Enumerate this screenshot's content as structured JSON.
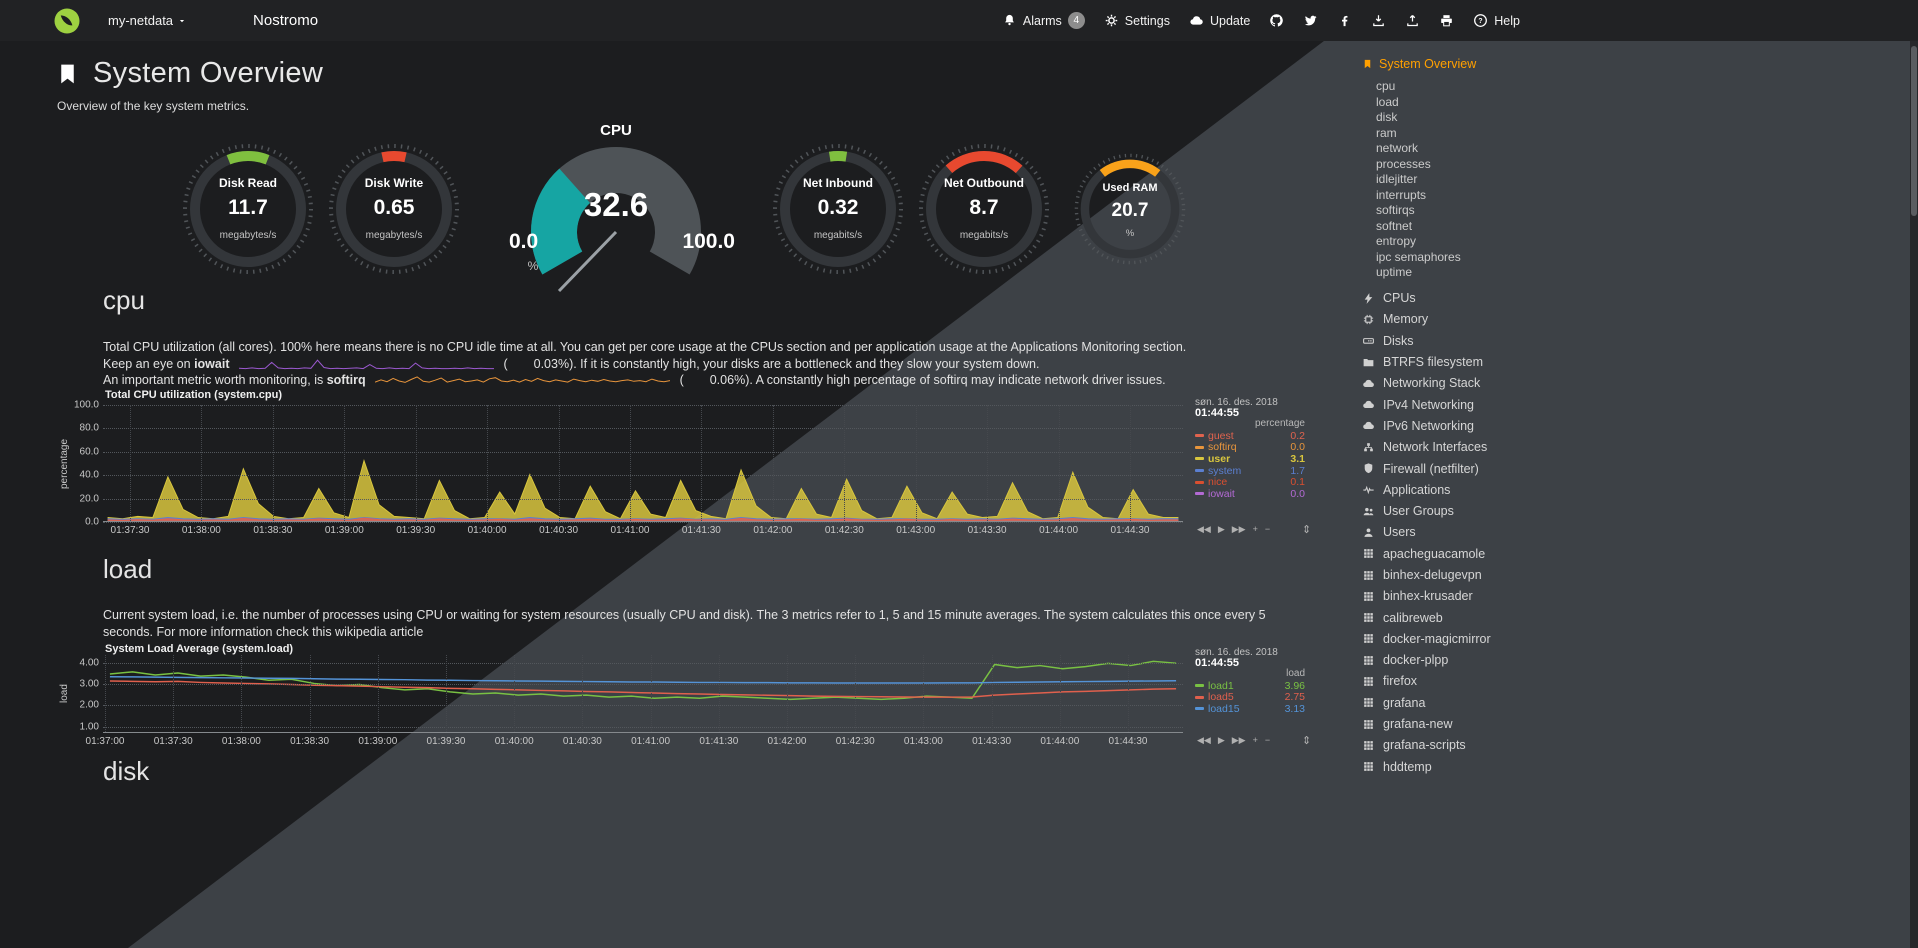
{
  "colors": {
    "accent_orange": "#ffa000",
    "bg_dark": "#1c1d1f",
    "bg_light": "#3d4146",
    "topbar_bg": "#212224"
  },
  "icons": {
    "alarms": "bell",
    "settings": "gear",
    "update": "cloud",
    "help": "question-circle",
    "active_section": "bookmark",
    "social": [
      "github",
      "twitter",
      "facebook"
    ],
    "actions": [
      "download",
      "upload",
      "print"
    ]
  },
  "topbar": {
    "hostname": "my-netdata",
    "app_title": "Nostromo",
    "alarms_label": "Alarms",
    "alarms_count": "4",
    "settings_label": "Settings",
    "update_label": "Update",
    "help_label": "Help"
  },
  "page": {
    "title": "System Overview",
    "subtitle": "Overview of the key system metrics."
  },
  "gauges": {
    "small": [
      {
        "label": "Disk Read",
        "value": "11.7",
        "unit": "megabytes/s",
        "color": "#7fbf3f",
        "arc_pct": 12
      },
      {
        "label": "Disk Write",
        "value": "0.65",
        "unit": "megabytes/s",
        "color": "#e8492f",
        "arc_pct": 7
      },
      {
        "label": "Net Inbound",
        "value": "0.32",
        "unit": "megabits/s",
        "color": "#7fbf3f",
        "arc_pct": 5
      },
      {
        "label": "Net Outbound",
        "value": "8.7",
        "unit": "megabits/s",
        "color": "#e8492f",
        "arc_pct": 23
      },
      {
        "label": "Used RAM",
        "value": "20.7",
        "unit": "%",
        "color": "#f9a21a",
        "arc_pct": 21,
        "small": true
      }
    ],
    "cpu": {
      "title": "CPU",
      "value": "32.6",
      "min": "0.0",
      "max": "100.0",
      "unit": "%",
      "pct": 32.6,
      "fill_color": "#16a5a3",
      "body_color": "#4e5357",
      "needle_color": "#9ba1a6"
    }
  },
  "cpu_section": {
    "heading": "cpu",
    "intro": "Total CPU utilization (all cores). 100% here means there is no CPU idle time at all. You can get per core usage at the CPUs section and per application usage at the Applications Monitoring section.",
    "iowait_pre": "Keep an eye on",
    "iowait_term": "iowait",
    "iowait_open": "(",
    "iowait_value": "0.03%",
    "iowait_post": "). If it is constantly high, your disks are a bottleneck and they slow your system down.",
    "softirq_pre": "An important metric worth monitoring, is",
    "softirq_term": "softirq",
    "softirq_open": "(",
    "softirq_value": "0.06%",
    "softirq_post": "). A constantly high percentage of softirq may indicate network driver issues."
  },
  "load_section": {
    "heading": "load",
    "intro": "Current system load, i.e. the number of processes using CPU or waiting for system resources (usually CPU and disk). The 3 metrics refer to 1, 5 and 15 minute averages. The system calculates this once every 5 seconds. For more information check this wikipedia article"
  },
  "disk_section": {
    "heading": "disk"
  },
  "ui": {
    "toolbar": [
      "◀◀",
      "▶",
      "▶▶",
      "+",
      "−"
    ],
    "resize_icon": "⇕"
  },
  "sparklines": [
    {
      "id": "iowait",
      "color": "#9b59d0",
      "ymax": 3,
      "values": [
        0.2,
        0.1,
        0.3,
        0.1,
        0.2,
        1.8,
        0.3,
        0.1,
        0.2,
        0.1,
        0.3,
        0.2,
        2.4,
        0.4,
        0.1,
        0.2,
        0.1,
        0.2,
        0.3,
        0.1,
        1.2,
        0.2,
        0.1,
        0.3,
        0.1,
        0.2,
        0.1,
        1.6,
        0.3,
        0.1,
        0.2,
        0.1,
        0.1,
        0.2,
        0.1,
        0.3,
        0.1,
        0.2,
        0.1,
        0.1
      ]
    },
    {
      "id": "softirq",
      "color": "#e8953c",
      "ymax": 3,
      "values": [
        0.8,
        1.4,
        0.9,
        1.8,
        1.1,
        0.7,
        1.5,
        2.2,
        1.0,
        0.8,
        1.3,
        1.9,
        0.8,
        1.2,
        1.6,
        0.9,
        1.1,
        1.4,
        0.8,
        1.7,
        2.0,
        1.1,
        0.9,
        1.3,
        0.8,
        1.5,
        1.0,
        1.8,
        1.2,
        0.9,
        1.4,
        1.1,
        0.8,
        1.6,
        1.2,
        0.9,
        1.3,
        1.0,
        1.5,
        1.1,
        0.9,
        1.2,
        1.4,
        1.0,
        1.2,
        0.9,
        1.6,
        1.1,
        0.9,
        1.2
      ]
    }
  ],
  "chart_data": [
    {
      "id": "cpu",
      "type": "area",
      "title": "Total CPU utilization (system.cpu)",
      "ylabel": "percentage",
      "unit": "percentage",
      "ylim": [
        0,
        100
      ],
      "yticks": [
        "100.0",
        "80.0",
        "60.0",
        "40.0",
        "20.0",
        "0.0"
      ],
      "xticks": [
        "01:37:30",
        "01:38:00",
        "01:38:30",
        "01:39:00",
        "01:39:30",
        "01:40:00",
        "01:40:30",
        "01:41:00",
        "01:41:30",
        "01:42:00",
        "01:42:30",
        "01:43:00",
        "01:43:30",
        "01:44:00",
        "01:44:30"
      ],
      "timestamp_date": "søn. 16. des. 2018",
      "timestamp_time": "01:44:55",
      "legend": [
        {
          "name": "guest",
          "value": "0.2",
          "color": "#e0634e"
        },
        {
          "name": "softirq",
          "value": "0.0",
          "color": "#e8953c"
        },
        {
          "name": "user",
          "value": "3.1",
          "color": "#d8c63e",
          "bold": true
        },
        {
          "name": "system",
          "value": "1.7",
          "color": "#5b7fd0"
        },
        {
          "name": "nice",
          "value": "0.1",
          "color": "#d94f30"
        },
        {
          "name": "iowait",
          "value": "0.0",
          "color": "#b36ad4"
        }
      ],
      "series": [
        {
          "name": "user",
          "color": "#d8c63e",
          "fill": true,
          "values": [
            3,
            2,
            4,
            3,
            38,
            10,
            3,
            2,
            4,
            45,
            15,
            4,
            2,
            3,
            28,
            7,
            3,
            52,
            14,
            4,
            3,
            2,
            35,
            9,
            2,
            3,
            25,
            6,
            40,
            11,
            3,
            2,
            30,
            8,
            2,
            26,
            6,
            3,
            35,
            9,
            4,
            2,
            44,
            13,
            3,
            2,
            28,
            6,
            3,
            36,
            9,
            2,
            3,
            30,
            7,
            2,
            25,
            6,
            3,
            4,
            33,
            8,
            2,
            3,
            42,
            12,
            3,
            2,
            27,
            6,
            3,
            3
          ]
        },
        {
          "name": "system",
          "color": "#5b7fd0",
          "fill": true,
          "values": [
            2,
            1.5,
            2,
            1.5,
            3,
            2,
            1.5,
            2,
            1.5,
            3,
            2,
            1.5,
            2,
            1.5,
            2.5,
            2,
            1.5,
            3,
            2,
            1.5,
            2,
            1.5,
            2.5,
            2,
            1.5,
            2,
            2,
            1.5,
            3,
            2,
            1.5,
            2,
            2.5,
            1.5,
            1.5,
            2,
            1.5,
            2,
            2.5,
            1.5,
            2,
            1.5,
            3,
            2,
            1.5,
            2,
            2,
            1.5,
            2,
            2.5,
            1.5,
            1.5,
            2,
            2,
            1.5,
            1.5,
            2,
            1.5,
            2,
            1.5,
            2.5,
            2,
            1.5,
            2,
            3,
            2,
            1.5,
            2,
            2,
            1.5,
            2,
            2
          ]
        },
        {
          "name": "guest",
          "color": "#e0634e",
          "fill": true,
          "values": [
            1,
            0.6,
            1.2,
            0.8,
            2,
            1,
            0.6,
            1,
            0.7,
            2.2,
            1,
            0.6,
            1,
            0.8,
            1.8,
            1,
            0.6,
            2.5,
            1.2,
            0.7,
            1,
            0.6,
            1.8,
            0.9,
            0.6,
            1,
            1.5,
            0.7,
            2,
            1,
            0.6,
            1,
            1.6,
            0.8,
            0.6,
            1.4,
            0.7,
            1,
            1.8,
            0.9,
            1,
            0.6,
            2.2,
            1.1,
            0.7,
            1,
            1.5,
            0.7,
            1,
            1.9,
            0.9,
            0.6,
            1,
            1.6,
            0.8,
            0.6,
            1.4,
            0.7,
            1,
            0.8,
            1.7,
            0.9,
            0.6,
            1,
            2.1,
            1,
            0.7,
            1,
            1.4,
            0.7,
            1,
            1
          ]
        }
      ]
    },
    {
      "id": "load",
      "type": "line",
      "title": "System Load Average (system.load)",
      "ylabel": "load",
      "unit": "load",
      "ylim": [
        0.7,
        4.35
      ],
      "yticks": [
        "4.00",
        "3.00",
        "2.00",
        "1.00"
      ],
      "xticks": [
        "01:37:00",
        "01:37:30",
        "01:38:00",
        "01:38:30",
        "01:39:00",
        "01:39:30",
        "01:40:00",
        "01:40:30",
        "01:41:00",
        "01:41:30",
        "01:42:00",
        "01:42:30",
        "01:43:00",
        "01:43:30",
        "01:44:00",
        "01:44:30"
      ],
      "timestamp_date": "søn. 16. des. 2018",
      "timestamp_time": "01:44:55",
      "legend": [
        {
          "name": "load1",
          "value": "3.96",
          "color": "#79c143"
        },
        {
          "name": "load5",
          "value": "2.75",
          "color": "#e0604d"
        },
        {
          "name": "load15",
          "value": "3.13",
          "color": "#5493d7"
        }
      ],
      "series": [
        {
          "name": "load1",
          "color": "#79c143",
          "line_width": 1.5,
          "values": [
            3.45,
            3.55,
            3.4,
            3.5,
            3.35,
            3.4,
            3.3,
            3.15,
            3.2,
            3.0,
            2.9,
            2.95,
            2.8,
            2.7,
            2.75,
            2.6,
            2.5,
            2.55,
            2.45,
            2.5,
            2.4,
            2.45,
            2.35,
            2.4,
            2.3,
            2.35,
            2.3,
            2.4,
            2.35,
            2.3,
            2.25,
            2.3,
            2.35,
            2.3,
            2.25,
            2.3,
            2.4,
            2.35,
            2.3,
            3.9,
            3.75,
            3.85,
            3.7,
            3.8,
            3.95,
            3.85,
            4.05,
            3.96
          ]
        },
        {
          "name": "load5",
          "color": "#e0604d",
          "line_width": 1.5,
          "values": [
            3.12,
            3.1,
            3.08,
            3.1,
            3.05,
            3.02,
            3.0,
            2.98,
            2.95,
            2.92,
            2.9,
            2.87,
            2.85,
            2.82,
            2.8,
            2.77,
            2.75,
            2.72,
            2.7,
            2.67,
            2.65,
            2.62,
            2.6,
            2.57,
            2.55,
            2.52,
            2.5,
            2.48,
            2.46,
            2.44,
            2.42,
            2.4,
            2.39,
            2.38,
            2.37,
            2.36,
            2.35,
            2.35,
            2.36,
            2.45,
            2.5,
            2.55,
            2.6,
            2.63,
            2.66,
            2.7,
            2.73,
            2.75
          ]
        },
        {
          "name": "load15",
          "color": "#5493d7",
          "line_width": 1.5,
          "values": [
            3.32,
            3.31,
            3.3,
            3.29,
            3.28,
            3.27,
            3.26,
            3.25,
            3.24,
            3.22,
            3.21,
            3.2,
            3.19,
            3.18,
            3.16,
            3.15,
            3.14,
            3.13,
            3.12,
            3.11,
            3.1,
            3.09,
            3.08,
            3.07,
            3.07,
            3.06,
            3.05,
            3.05,
            3.04,
            3.04,
            3.03,
            3.03,
            3.02,
            3.02,
            3.02,
            3.02,
            3.02,
            3.03,
            3.03,
            3.05,
            3.06,
            3.07,
            3.08,
            3.09,
            3.1,
            3.11,
            3.12,
            3.13
          ]
        }
      ]
    }
  ],
  "sidebar": {
    "active": {
      "label": "System Overview"
    },
    "subitems": [
      "cpu",
      "load",
      "disk",
      "ram",
      "network",
      "processes",
      "idlejitter",
      "interrupts",
      "softirqs",
      "softnet",
      "entropy",
      "ipc semaphores",
      "uptime"
    ],
    "sections": [
      {
        "label": "CPUs",
        "icon": "bolt"
      },
      {
        "label": "Memory",
        "icon": "chip"
      },
      {
        "label": "Disks",
        "icon": "disk"
      },
      {
        "label": "BTRFS filesystem",
        "icon": "folder"
      },
      {
        "label": "Networking Stack",
        "icon": "cloud"
      },
      {
        "label": "IPv4 Networking",
        "icon": "cloud"
      },
      {
        "label": "IPv6 Networking",
        "icon": "cloud"
      },
      {
        "label": "Network Interfaces",
        "icon": "port"
      },
      {
        "label": "Firewall (netfilter)",
        "icon": "shield"
      },
      {
        "label": "Applications",
        "icon": "heartbeat"
      },
      {
        "label": "User Groups",
        "icon": "users"
      },
      {
        "label": "Users",
        "icon": "user"
      },
      {
        "label": "apacheguacamole",
        "icon": "grid"
      },
      {
        "label": "binhex-delugevpn",
        "icon": "grid"
      },
      {
        "label": "binhex-krusader",
        "icon": "grid"
      },
      {
        "label": "calibreweb",
        "icon": "grid"
      },
      {
        "label": "docker-magicmirror",
        "icon": "grid"
      },
      {
        "label": "docker-plpp",
        "icon": "grid"
      },
      {
        "label": "firefox",
        "icon": "grid"
      },
      {
        "label": "grafana",
        "icon": "grid"
      },
      {
        "label": "grafana-new",
        "icon": "grid"
      },
      {
        "label": "grafana-scripts",
        "icon": "grid"
      },
      {
        "label": "hddtemp",
        "icon": "grid"
      }
    ]
  }
}
